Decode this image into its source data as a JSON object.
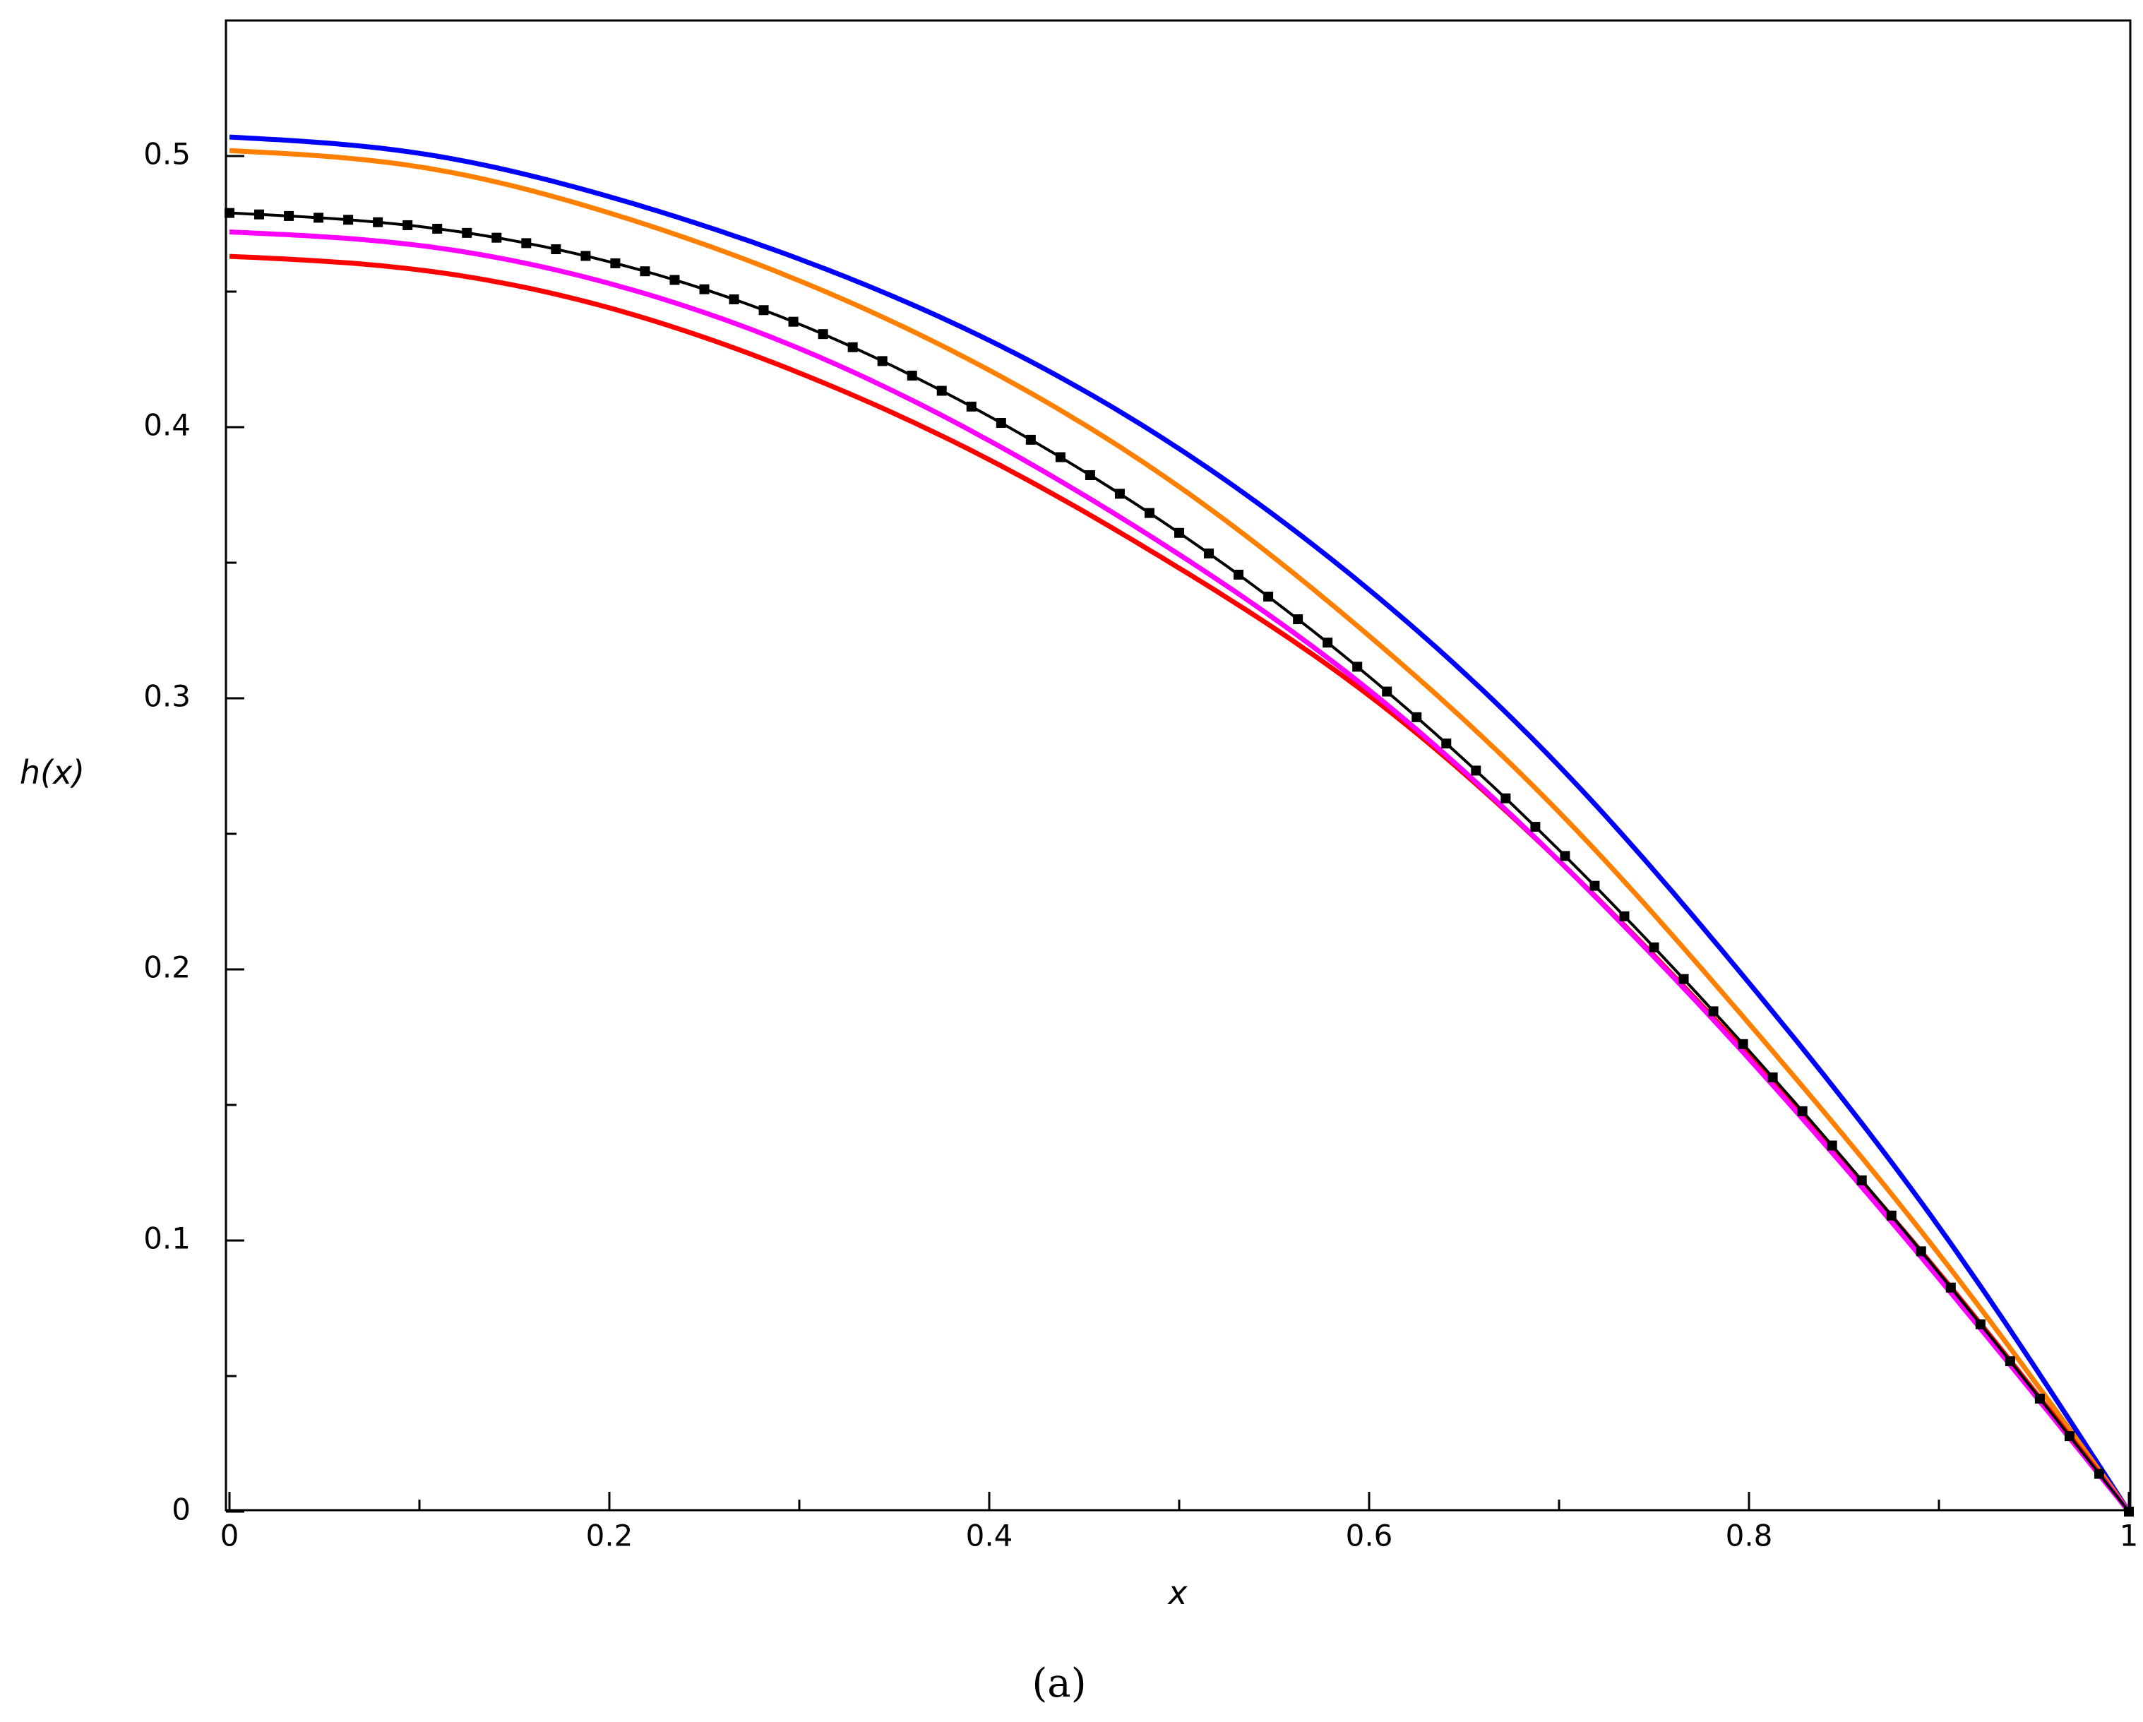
{
  "chart_data": {
    "type": "line",
    "xlabel": "x",
    "ylabel": "h(x)",
    "caption": "(a)",
    "xlim": [
      0,
      1
    ],
    "ylim": [
      0,
      0.55
    ],
    "xticks": [
      0,
      0.2,
      0.4,
      0.6,
      0.8,
      1
    ],
    "xtick_labels": [
      "0",
      "0.2",
      "0.4",
      "0.6",
      "0.8",
      "1"
    ],
    "yticks": [
      0,
      0.1,
      0.2,
      0.3,
      0.4,
      0.5
    ],
    "ytick_labels": [
      "0",
      "0.1",
      "0.2",
      "0.3",
      "0.4",
      "0.5"
    ],
    "grid": false,
    "legend": "none",
    "x": [
      0,
      0.1,
      0.2,
      0.3,
      0.4,
      0.5,
      0.6,
      0.7,
      0.8,
      0.9,
      1.0
    ],
    "series": [
      {
        "color": "#0000ff",
        "marker": "none",
        "values": [
          0.507,
          0.501,
          0.485,
          0.462,
          0.432,
          0.392,
          0.34,
          0.275,
          0.195,
          0.105,
          0.0
        ]
      },
      {
        "color": "#ff8000",
        "marker": "none",
        "values": [
          0.502,
          0.496,
          0.479,
          0.454,
          0.421,
          0.378,
          0.323,
          0.258,
          0.18,
          0.095,
          0.0
        ]
      },
      {
        "color": "#000000",
        "marker": "square",
        "values": [
          0.479,
          0.474,
          0.461,
          0.438,
          0.404,
          0.361,
          0.308,
          0.244,
          0.17,
          0.088,
          0.0
        ]
      },
      {
        "color": "#ff00ff",
        "marker": "none",
        "values": [
          0.472,
          0.467,
          0.453,
          0.429,
          0.395,
          0.353,
          0.303,
          0.24,
          0.167,
          0.086,
          0.0
        ]
      },
      {
        "color": "#ff0000",
        "marker": "none",
        "values": [
          0.463,
          0.458,
          0.444,
          0.42,
          0.388,
          0.348,
          0.301,
          0.24,
          0.168,
          0.088,
          0.0
        ]
      }
    ]
  }
}
